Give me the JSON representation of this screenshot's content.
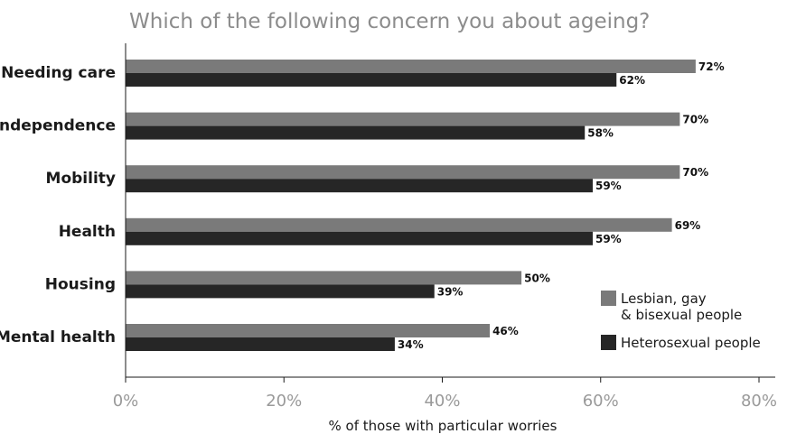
{
  "chart_data": {
    "type": "bar",
    "orientation": "horizontal",
    "title": "Which of the following concern you about ageing?",
    "xlabel": "% of those with particular worries",
    "ylabel": "",
    "xlim": [
      0,
      80
    ],
    "xticks": [
      "0%",
      "20%",
      "40%",
      "60%",
      "80%"
    ],
    "grid": false,
    "legend_position": "bottom-right",
    "categories": [
      "Needing care",
      "Independence",
      "Mobility",
      "Health",
      "Housing",
      "Mental health"
    ],
    "series": [
      {
        "name": "Lesbian, gay & bisexual people",
        "legend_lines": [
          "Lesbian, gay",
          "& bisexual people"
        ],
        "color": "#7a7a7a",
        "values": [
          72,
          70,
          70,
          69,
          50,
          46
        ]
      },
      {
        "name": "Heterosexual people",
        "legend_lines": [
          "Heterosexual people"
        ],
        "color": "#262626",
        "values": [
          62,
          58,
          59,
          59,
          39,
          34
        ]
      }
    ]
  }
}
